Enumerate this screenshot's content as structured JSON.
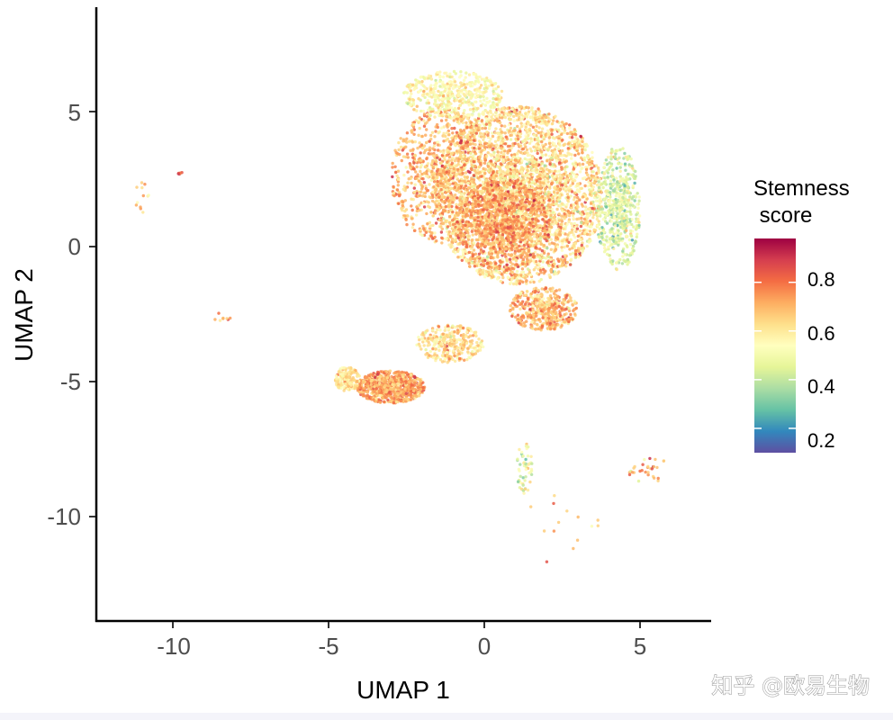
{
  "chart_data": {
    "type": "scatter",
    "title": "",
    "xlabel": "UMAP 1",
    "ylabel": "UMAP 2",
    "xlim": [
      -12.5,
      7.3
    ],
    "ylim": [
      -13.9,
      8.8
    ],
    "xticks": [
      -10,
      -5,
      0,
      5
    ],
    "yticks": [
      -10,
      -5,
      0,
      5
    ],
    "x_tick_labels": [
      "-10",
      "-5",
      "0",
      "5"
    ],
    "y_tick_labels": [
      "-10",
      "-5",
      "0",
      "5"
    ],
    "grid": false,
    "colorbar": {
      "title_line1": "Stemness",
      "title_line2": " score",
      "range": [
        0.1,
        0.98
      ],
      "ticks": [
        0.2,
        0.4,
        0.6,
        0.8
      ],
      "tick_labels": [
        "0.2",
        "0.4",
        "0.6",
        "0.8"
      ],
      "colormap": "Spectral (reversed)",
      "stops": [
        "#5e4fa2",
        "#3288bd",
        "#66c2a5",
        "#abdda4",
        "#e6f598",
        "#ffffbf",
        "#fee08b",
        "#fdae61",
        "#f46d43",
        "#d53e4f",
        "#9e0142"
      ],
      "placement": "right"
    },
    "clusters": [
      {
        "name": "main-cluster",
        "center": [
          1.1,
          1.9
        ],
        "spread": [
          2.7,
          3.3
        ],
        "count": 3600,
        "score_mean": 0.64,
        "score_sd": 0.1
      },
      {
        "name": "main-cluster-left-dense",
        "center": [
          -1.3,
          2.6
        ],
        "spread": [
          1.7,
          2.5
        ],
        "count": 900,
        "score_mean": 0.7,
        "score_sd": 0.08
      },
      {
        "name": "main-cluster-center-dense",
        "center": [
          0.6,
          0.8
        ],
        "spread": [
          1.5,
          1.7
        ],
        "count": 800,
        "score_mean": 0.74,
        "score_sd": 0.07
      },
      {
        "name": "main-cluster-upper-left",
        "center": [
          -1.0,
          5.6
        ],
        "spread": [
          1.6,
          0.9
        ],
        "count": 450,
        "score_mean": 0.55,
        "score_sd": 0.07
      },
      {
        "name": "main-cluster-right-edge",
        "center": [
          4.3,
          1.4
        ],
        "spread": [
          0.7,
          2.3
        ],
        "count": 550,
        "score_mean": 0.45,
        "score_sd": 0.09
      },
      {
        "name": "main-cluster-lower-right",
        "center": [
          1.9,
          -2.3
        ],
        "spread": [
          1.1,
          0.8
        ],
        "count": 450,
        "score_mean": 0.7,
        "score_sd": 0.08
      },
      {
        "name": "bridge-cluster",
        "center": [
          -1.1,
          -3.6
        ],
        "spread": [
          1.1,
          0.7
        ],
        "count": 320,
        "score_mean": 0.63,
        "score_sd": 0.08
      },
      {
        "name": "lower-left-cluster",
        "center": [
          -3.0,
          -5.2
        ],
        "spread": [
          1.1,
          0.6
        ],
        "count": 750,
        "score_mean": 0.72,
        "score_sd": 0.08
      },
      {
        "name": "lower-left-cluster-edge",
        "center": [
          -4.4,
          -4.9
        ],
        "spread": [
          0.4,
          0.45
        ],
        "count": 170,
        "score_mean": 0.62,
        "score_sd": 0.06
      },
      {
        "name": "vertical-strand",
        "center": [
          1.3,
          -8.2
        ],
        "spread": [
          0.25,
          1.0
        ],
        "count": 55,
        "score_mean": 0.5,
        "score_sd": 0.1
      },
      {
        "name": "lower-right-group",
        "center": [
          5.3,
          -8.3
        ],
        "spread": [
          0.7,
          0.5
        ],
        "count": 30,
        "score_mean": 0.7,
        "score_sd": 0.12
      },
      {
        "name": "far-left-group",
        "center": [
          -11.0,
          1.8
        ],
        "spread": [
          0.25,
          0.6
        ],
        "count": 12,
        "score_mean": 0.67,
        "score_sd": 0.1
      },
      {
        "name": "far-left-top",
        "center": [
          -9.7,
          2.7
        ],
        "spread": [
          0.25,
          0.05
        ],
        "count": 6,
        "score_mean": 0.8,
        "score_sd": 0.08
      },
      {
        "name": "left-strand",
        "center": [
          -8.4,
          -2.6
        ],
        "spread": [
          0.4,
          0.15
        ],
        "count": 8,
        "score_mean": 0.7,
        "score_sd": 0.08
      },
      {
        "name": "scattered-bottom",
        "center": [
          2.5,
          -10.5
        ],
        "spread": [
          1.3,
          1.5
        ],
        "count": 14,
        "score_mean": 0.68,
        "score_sd": 0.12
      }
    ]
  },
  "watermark": "知乎 @欧易生物"
}
